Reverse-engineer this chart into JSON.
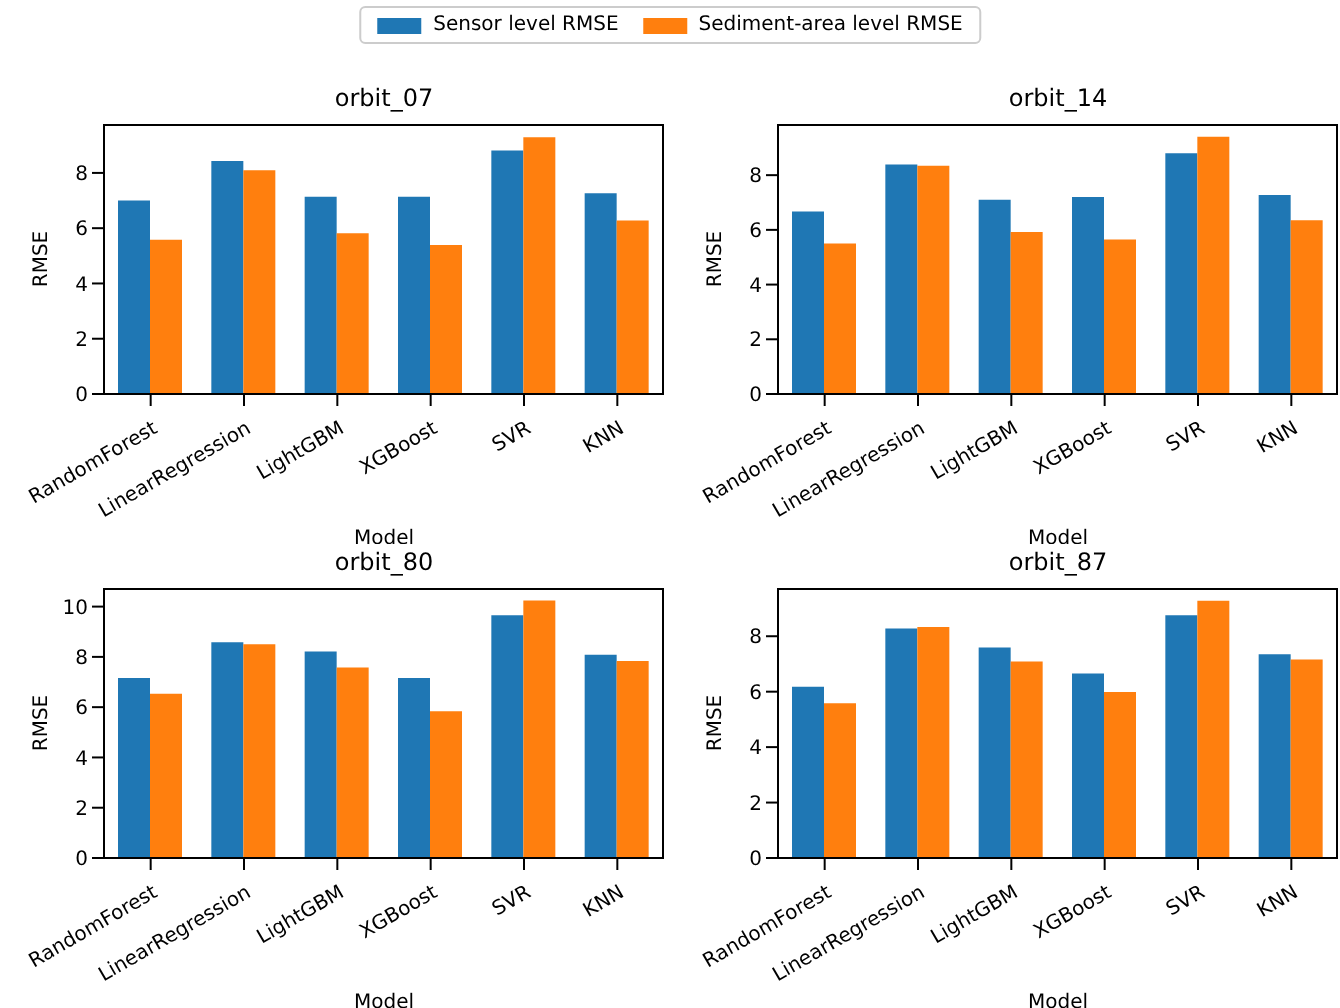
{
  "chart_data": [
    {
      "type": "bar",
      "title": "orbit_07",
      "xlabel": "Model",
      "ylabel": "RMSE",
      "categories": [
        "RandomForest",
        "LinearRegression",
        "LightGBM",
        "XGBoost",
        "SVR",
        "KNN"
      ],
      "legend": "top",
      "grid": false,
      "ylim": [
        0,
        9.77
      ],
      "yticks": [
        0,
        2,
        4,
        6,
        8
      ],
      "series": [
        {
          "name": "Sensor level RMSE",
          "color": "#1f77b4",
          "values": [
            7.0,
            8.43,
            7.14,
            7.14,
            8.81,
            7.26
          ]
        },
        {
          "name": "Sediment-area level RMSE",
          "color": "#ff7f0e",
          "values": [
            5.58,
            8.1,
            5.82,
            5.39,
            9.29,
            6.28
          ]
        }
      ]
    },
    {
      "type": "bar",
      "title": "orbit_14",
      "xlabel": "Model",
      "ylabel": "RMSE",
      "categories": [
        "RandomForest",
        "LinearRegression",
        "LightGBM",
        "XGBoost",
        "SVR",
        "KNN"
      ],
      "grid": false,
      "ylim": [
        0,
        9.87
      ],
      "yticks": [
        0,
        2,
        4,
        6,
        8
      ],
      "series": [
        {
          "color": "#1f77b4",
          "values": [
            6.67,
            8.39,
            7.1,
            7.2,
            8.8,
            7.27
          ]
        },
        {
          "color": "#ff7f0e",
          "values": [
            5.5,
            8.34,
            5.92,
            5.65,
            9.4,
            6.35
          ]
        }
      ]
    },
    {
      "type": "bar",
      "title": "orbit_80",
      "xlabel": "Model",
      "ylabel": "RMSE",
      "categories": [
        "RandomForest",
        "LinearRegression",
        "LightGBM",
        "XGBoost",
        "SVR",
        "KNN"
      ],
      "grid": false,
      "ylim": [
        0,
        10.74
      ],
      "yticks": [
        0,
        2,
        4,
        6,
        8,
        10
      ],
      "series": [
        {
          "color": "#1f77b4",
          "values": [
            7.16,
            8.58,
            8.21,
            7.16,
            9.66,
            8.08
          ]
        },
        {
          "color": "#ff7f0e",
          "values": [
            6.53,
            8.5,
            7.58,
            5.84,
            10.24,
            7.84
          ]
        }
      ]
    },
    {
      "type": "bar",
      "title": "orbit_87",
      "xlabel": "Model",
      "ylabel": "RMSE",
      "categories": [
        "RandomForest",
        "LinearRegression",
        "LightGBM",
        "XGBoost",
        "SVR",
        "KNN"
      ],
      "grid": false,
      "ylim": [
        0,
        9.74
      ],
      "yticks": [
        0,
        2,
        4,
        6,
        8
      ],
      "series": [
        {
          "color": "#1f77b4",
          "values": [
            6.18,
            8.28,
            7.59,
            6.66,
            8.76,
            7.35
          ]
        },
        {
          "color": "#ff7f0e",
          "values": [
            5.58,
            8.33,
            7.09,
            5.99,
            9.28,
            7.16
          ]
        }
      ]
    }
  ]
}
